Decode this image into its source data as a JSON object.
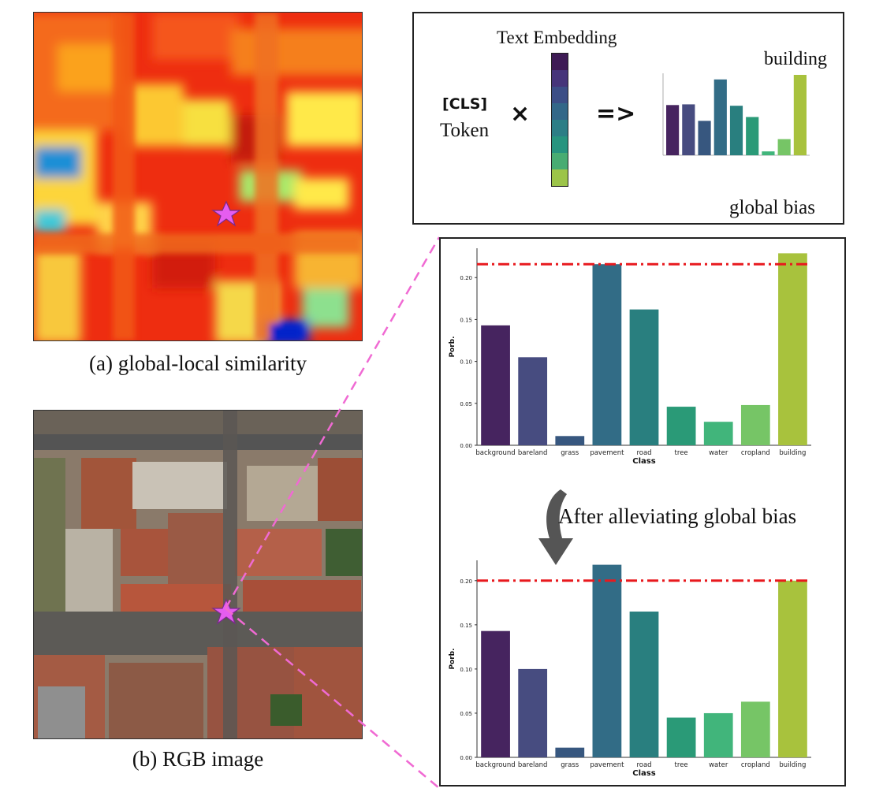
{
  "captions": {
    "similarity": "(a) global-local similarity",
    "rgb": "(b) RGB image"
  },
  "top_box": {
    "text_embedding_label": "Text Embedding",
    "cls_label": "[CLS]",
    "token_label": "Token",
    "times_symbol": "×",
    "arrow_symbol": "=>",
    "class_label": "building",
    "global_bias_label": "global bias"
  },
  "middle_label": "After alleviating global bias",
  "colors": {
    "bias_line": "#e8191e",
    "dashed_connector": "#f06ad3",
    "star": "#e55df0"
  },
  "chart_data": [
    {
      "id": "before",
      "type": "bar",
      "categories": [
        "background",
        "bareland",
        "grass",
        "pavement",
        "road",
        "tree",
        "water",
        "cropland",
        "building"
      ],
      "values": [
        0.143,
        0.105,
        0.011,
        0.216,
        0.162,
        0.046,
        0.028,
        0.048,
        0.229
      ],
      "colors": [
        "#46245f",
        "#474c80",
        "#37577f",
        "#326c86",
        "#297f7f",
        "#2a9a77",
        "#41b57b",
        "#76c566",
        "#a8c23d"
      ],
      "ylim": [
        0,
        0.235
      ],
      "yticks": [
        0.0,
        0.05,
        0.1,
        0.15,
        0.2
      ],
      "ytick_labels": [
        "0.00",
        "0.05",
        "0.10",
        "0.15",
        "0.20"
      ],
      "xlabel": "Class",
      "ylabel": "Porb.",
      "threshold": 0.216
    },
    {
      "id": "after",
      "type": "bar",
      "categories": [
        "background",
        "bareland",
        "grass",
        "pavement",
        "road",
        "tree",
        "water",
        "cropland",
        "building"
      ],
      "values": [
        0.143,
        0.1,
        0.011,
        0.218,
        0.165,
        0.045,
        0.05,
        0.063,
        0.2
      ],
      "colors": [
        "#46245f",
        "#474c80",
        "#37577f",
        "#326c86",
        "#297f7f",
        "#2a9a77",
        "#41b57b",
        "#76c566",
        "#a8c23d"
      ],
      "ylim": [
        0,
        0.223
      ],
      "yticks": [
        0.0,
        0.05,
        0.1,
        0.15,
        0.2
      ],
      "ytick_labels": [
        "0.00",
        "0.05",
        "0.10",
        "0.15",
        "0.20"
      ],
      "xlabel": "Class",
      "ylabel": "Porb.",
      "threshold": 0.2
    }
  ],
  "mini_chart": {
    "type": "bar",
    "values": [
      0.143,
      0.145,
      0.098,
      0.216,
      0.141,
      0.109,
      0.011,
      0.046,
      0.229
    ],
    "colors": [
      "#46245f",
      "#474c80",
      "#37577f",
      "#326c86",
      "#297f7f",
      "#2a9a77",
      "#41b57b",
      "#76c566",
      "#a8c23d"
    ]
  }
}
